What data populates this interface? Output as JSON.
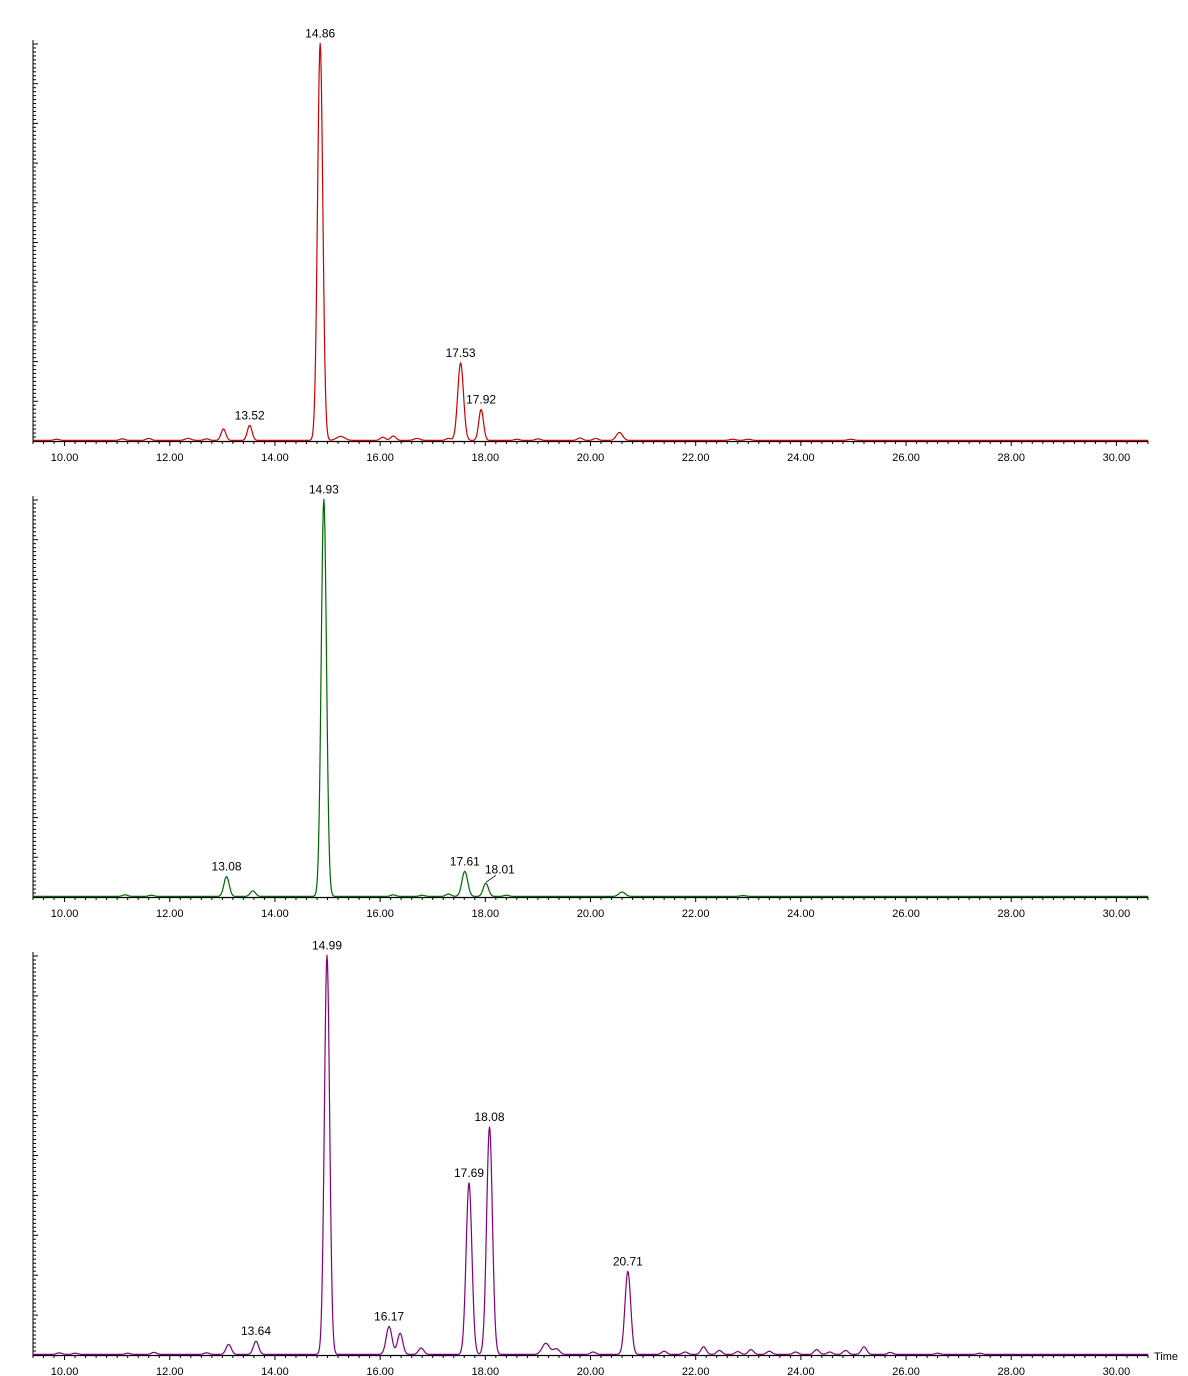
{
  "chart_data": [
    {
      "type": "line",
      "color": "#cc0000",
      "xlim": [
        9.4,
        30.6
      ],
      "xticks": [
        10,
        12,
        14,
        16,
        18,
        20,
        22,
        24,
        26,
        28,
        30
      ],
      "xtick_labels": [
        "10.00",
        "12.00",
        "14.00",
        "16.00",
        "18.00",
        "20.00",
        "22.00",
        "24.00",
        "26.00",
        "28.00",
        "30.00"
      ],
      "xlabel": "",
      "ylim": [
        0,
        100
      ],
      "peaks": [
        {
          "rt": 9.85,
          "height": 0.3,
          "width": 0.05
        },
        {
          "rt": 11.1,
          "height": 0.4,
          "width": 0.05
        },
        {
          "rt": 11.6,
          "height": 0.5,
          "width": 0.05
        },
        {
          "rt": 12.35,
          "height": 0.5,
          "width": 0.06
        },
        {
          "rt": 12.7,
          "height": 0.4,
          "width": 0.05
        },
        {
          "rt": 13.02,
          "height": 2.9,
          "width": 0.045
        },
        {
          "rt": 13.52,
          "height": 3.8,
          "width": 0.045
        },
        {
          "rt": 14.86,
          "height": 100,
          "width": 0.05
        },
        {
          "rt": 15.25,
          "height": 1.0,
          "width": 0.08
        },
        {
          "rt": 16.05,
          "height": 0.8,
          "width": 0.05
        },
        {
          "rt": 16.25,
          "height": 1.1,
          "width": 0.05
        },
        {
          "rt": 16.7,
          "height": 0.5,
          "width": 0.06
        },
        {
          "rt": 17.3,
          "height": 0.5,
          "width": 0.05
        },
        {
          "rt": 17.53,
          "height": 19.5,
          "width": 0.055
        },
        {
          "rt": 17.92,
          "height": 7.8,
          "width": 0.045
        },
        {
          "rt": 18.6,
          "height": 0.3,
          "width": 0.05
        },
        {
          "rt": 19.0,
          "height": 0.4,
          "width": 0.05
        },
        {
          "rt": 19.8,
          "height": 0.6,
          "width": 0.05
        },
        {
          "rt": 20.1,
          "height": 0.5,
          "width": 0.05
        },
        {
          "rt": 20.55,
          "height": 2.0,
          "width": 0.06
        },
        {
          "rt": 22.7,
          "height": 0.3,
          "width": 0.06
        },
        {
          "rt": 23.0,
          "height": 0.3,
          "width": 0.06
        },
        {
          "rt": 24.95,
          "height": 0.3,
          "width": 0.06
        }
      ],
      "labels": [
        {
          "rt": 13.52,
          "text": "13.52"
        },
        {
          "rt": 14.86,
          "text": "14.86"
        },
        {
          "rt": 17.53,
          "text": "17.53"
        },
        {
          "rt": 17.92,
          "text": "17.92"
        }
      ]
    },
    {
      "type": "line",
      "color": "#006600",
      "xlim": [
        9.4,
        30.6
      ],
      "xticks": [
        10,
        12,
        14,
        16,
        18,
        20,
        22,
        24,
        26,
        28,
        30
      ],
      "xtick_labels": [
        "10.00",
        "12.00",
        "14.00",
        "16.00",
        "18.00",
        "20.00",
        "22.00",
        "24.00",
        "26.00",
        "28.00",
        "30.00"
      ],
      "xlabel": "",
      "ylim": [
        0,
        100
      ],
      "peaks": [
        {
          "rt": 11.15,
          "height": 0.4,
          "width": 0.05
        },
        {
          "rt": 11.65,
          "height": 0.3,
          "width": 0.05
        },
        {
          "rt": 13.08,
          "height": 5.0,
          "width": 0.05
        },
        {
          "rt": 13.58,
          "height": 1.4,
          "width": 0.05
        },
        {
          "rt": 14.93,
          "height": 100,
          "width": 0.05
        },
        {
          "rt": 16.25,
          "height": 0.4,
          "width": 0.05
        },
        {
          "rt": 16.8,
          "height": 0.3,
          "width": 0.05
        },
        {
          "rt": 17.3,
          "height": 0.6,
          "width": 0.05
        },
        {
          "rt": 17.61,
          "height": 6.3,
          "width": 0.055
        },
        {
          "rt": 18.01,
          "height": 3.3,
          "width": 0.05
        },
        {
          "rt": 18.4,
          "height": 0.3,
          "width": 0.05
        },
        {
          "rt": 20.6,
          "height": 1.1,
          "width": 0.06
        },
        {
          "rt": 22.9,
          "height": 0.2,
          "width": 0.06
        }
      ],
      "labels": [
        {
          "rt": 13.08,
          "text": "13.08"
        },
        {
          "rt": 14.93,
          "text": "14.93"
        },
        {
          "rt": 17.61,
          "text": "17.61"
        },
        {
          "rt": 18.01,
          "text": "18.01"
        }
      ]
    },
    {
      "type": "line",
      "color": "#800080",
      "xlim": [
        9.4,
        30.6
      ],
      "xticks": [
        10,
        12,
        14,
        16,
        18,
        20,
        22,
        24,
        26,
        28,
        30
      ],
      "xtick_labels": [
        "10.00",
        "12.00",
        "14.00",
        "16.00",
        "18.00",
        "20.00",
        "22.00",
        "24.00",
        "26.00",
        "28.00",
        "30.00"
      ],
      "xlabel": "Time",
      "ylim": [
        0,
        100
      ],
      "peaks": [
        {
          "rt": 9.9,
          "height": 0.4,
          "width": 0.05
        },
        {
          "rt": 10.2,
          "height": 0.3,
          "width": 0.05
        },
        {
          "rt": 11.2,
          "height": 0.3,
          "width": 0.05
        },
        {
          "rt": 11.7,
          "height": 0.5,
          "width": 0.05
        },
        {
          "rt": 12.7,
          "height": 0.4,
          "width": 0.05
        },
        {
          "rt": 13.12,
          "height": 2.5,
          "width": 0.05
        },
        {
          "rt": 13.64,
          "height": 3.3,
          "width": 0.05
        },
        {
          "rt": 14.99,
          "height": 100,
          "width": 0.05
        },
        {
          "rt": 16.17,
          "height": 7.0,
          "width": 0.055
        },
        {
          "rt": 16.38,
          "height": 5.3,
          "width": 0.05
        },
        {
          "rt": 16.78,
          "height": 1.6,
          "width": 0.05
        },
        {
          "rt": 17.69,
          "height": 43.0,
          "width": 0.055
        },
        {
          "rt": 18.08,
          "height": 57.0,
          "width": 0.055
        },
        {
          "rt": 19.15,
          "height": 2.8,
          "width": 0.07
        },
        {
          "rt": 19.35,
          "height": 1.4,
          "width": 0.06
        },
        {
          "rt": 20.05,
          "height": 0.6,
          "width": 0.05
        },
        {
          "rt": 20.71,
          "height": 20.8,
          "width": 0.055
        },
        {
          "rt": 21.4,
          "height": 0.8,
          "width": 0.05
        },
        {
          "rt": 21.8,
          "height": 0.6,
          "width": 0.05
        },
        {
          "rt": 22.15,
          "height": 1.9,
          "width": 0.05
        },
        {
          "rt": 22.45,
          "height": 1.0,
          "width": 0.05
        },
        {
          "rt": 22.8,
          "height": 0.7,
          "width": 0.05
        },
        {
          "rt": 23.05,
          "height": 1.2,
          "width": 0.05
        },
        {
          "rt": 23.4,
          "height": 0.8,
          "width": 0.05
        },
        {
          "rt": 23.9,
          "height": 0.6,
          "width": 0.05
        },
        {
          "rt": 24.3,
          "height": 1.2,
          "width": 0.05
        },
        {
          "rt": 24.55,
          "height": 0.6,
          "width": 0.05
        },
        {
          "rt": 24.85,
          "height": 1.0,
          "width": 0.05
        },
        {
          "rt": 25.2,
          "height": 1.9,
          "width": 0.05
        },
        {
          "rt": 25.7,
          "height": 0.5,
          "width": 0.05
        },
        {
          "rt": 26.6,
          "height": 0.3,
          "width": 0.05
        },
        {
          "rt": 27.4,
          "height": 0.3,
          "width": 0.05
        }
      ],
      "labels": [
        {
          "rt": 13.64,
          "text": "13.64"
        },
        {
          "rt": 14.99,
          "text": "14.99"
        },
        {
          "rt": 16.17,
          "text": "16.17"
        },
        {
          "rt": 17.69,
          "text": "17.69"
        },
        {
          "rt": 18.08,
          "text": "18.08"
        },
        {
          "rt": 20.71,
          "text": "20.71"
        }
      ]
    }
  ]
}
